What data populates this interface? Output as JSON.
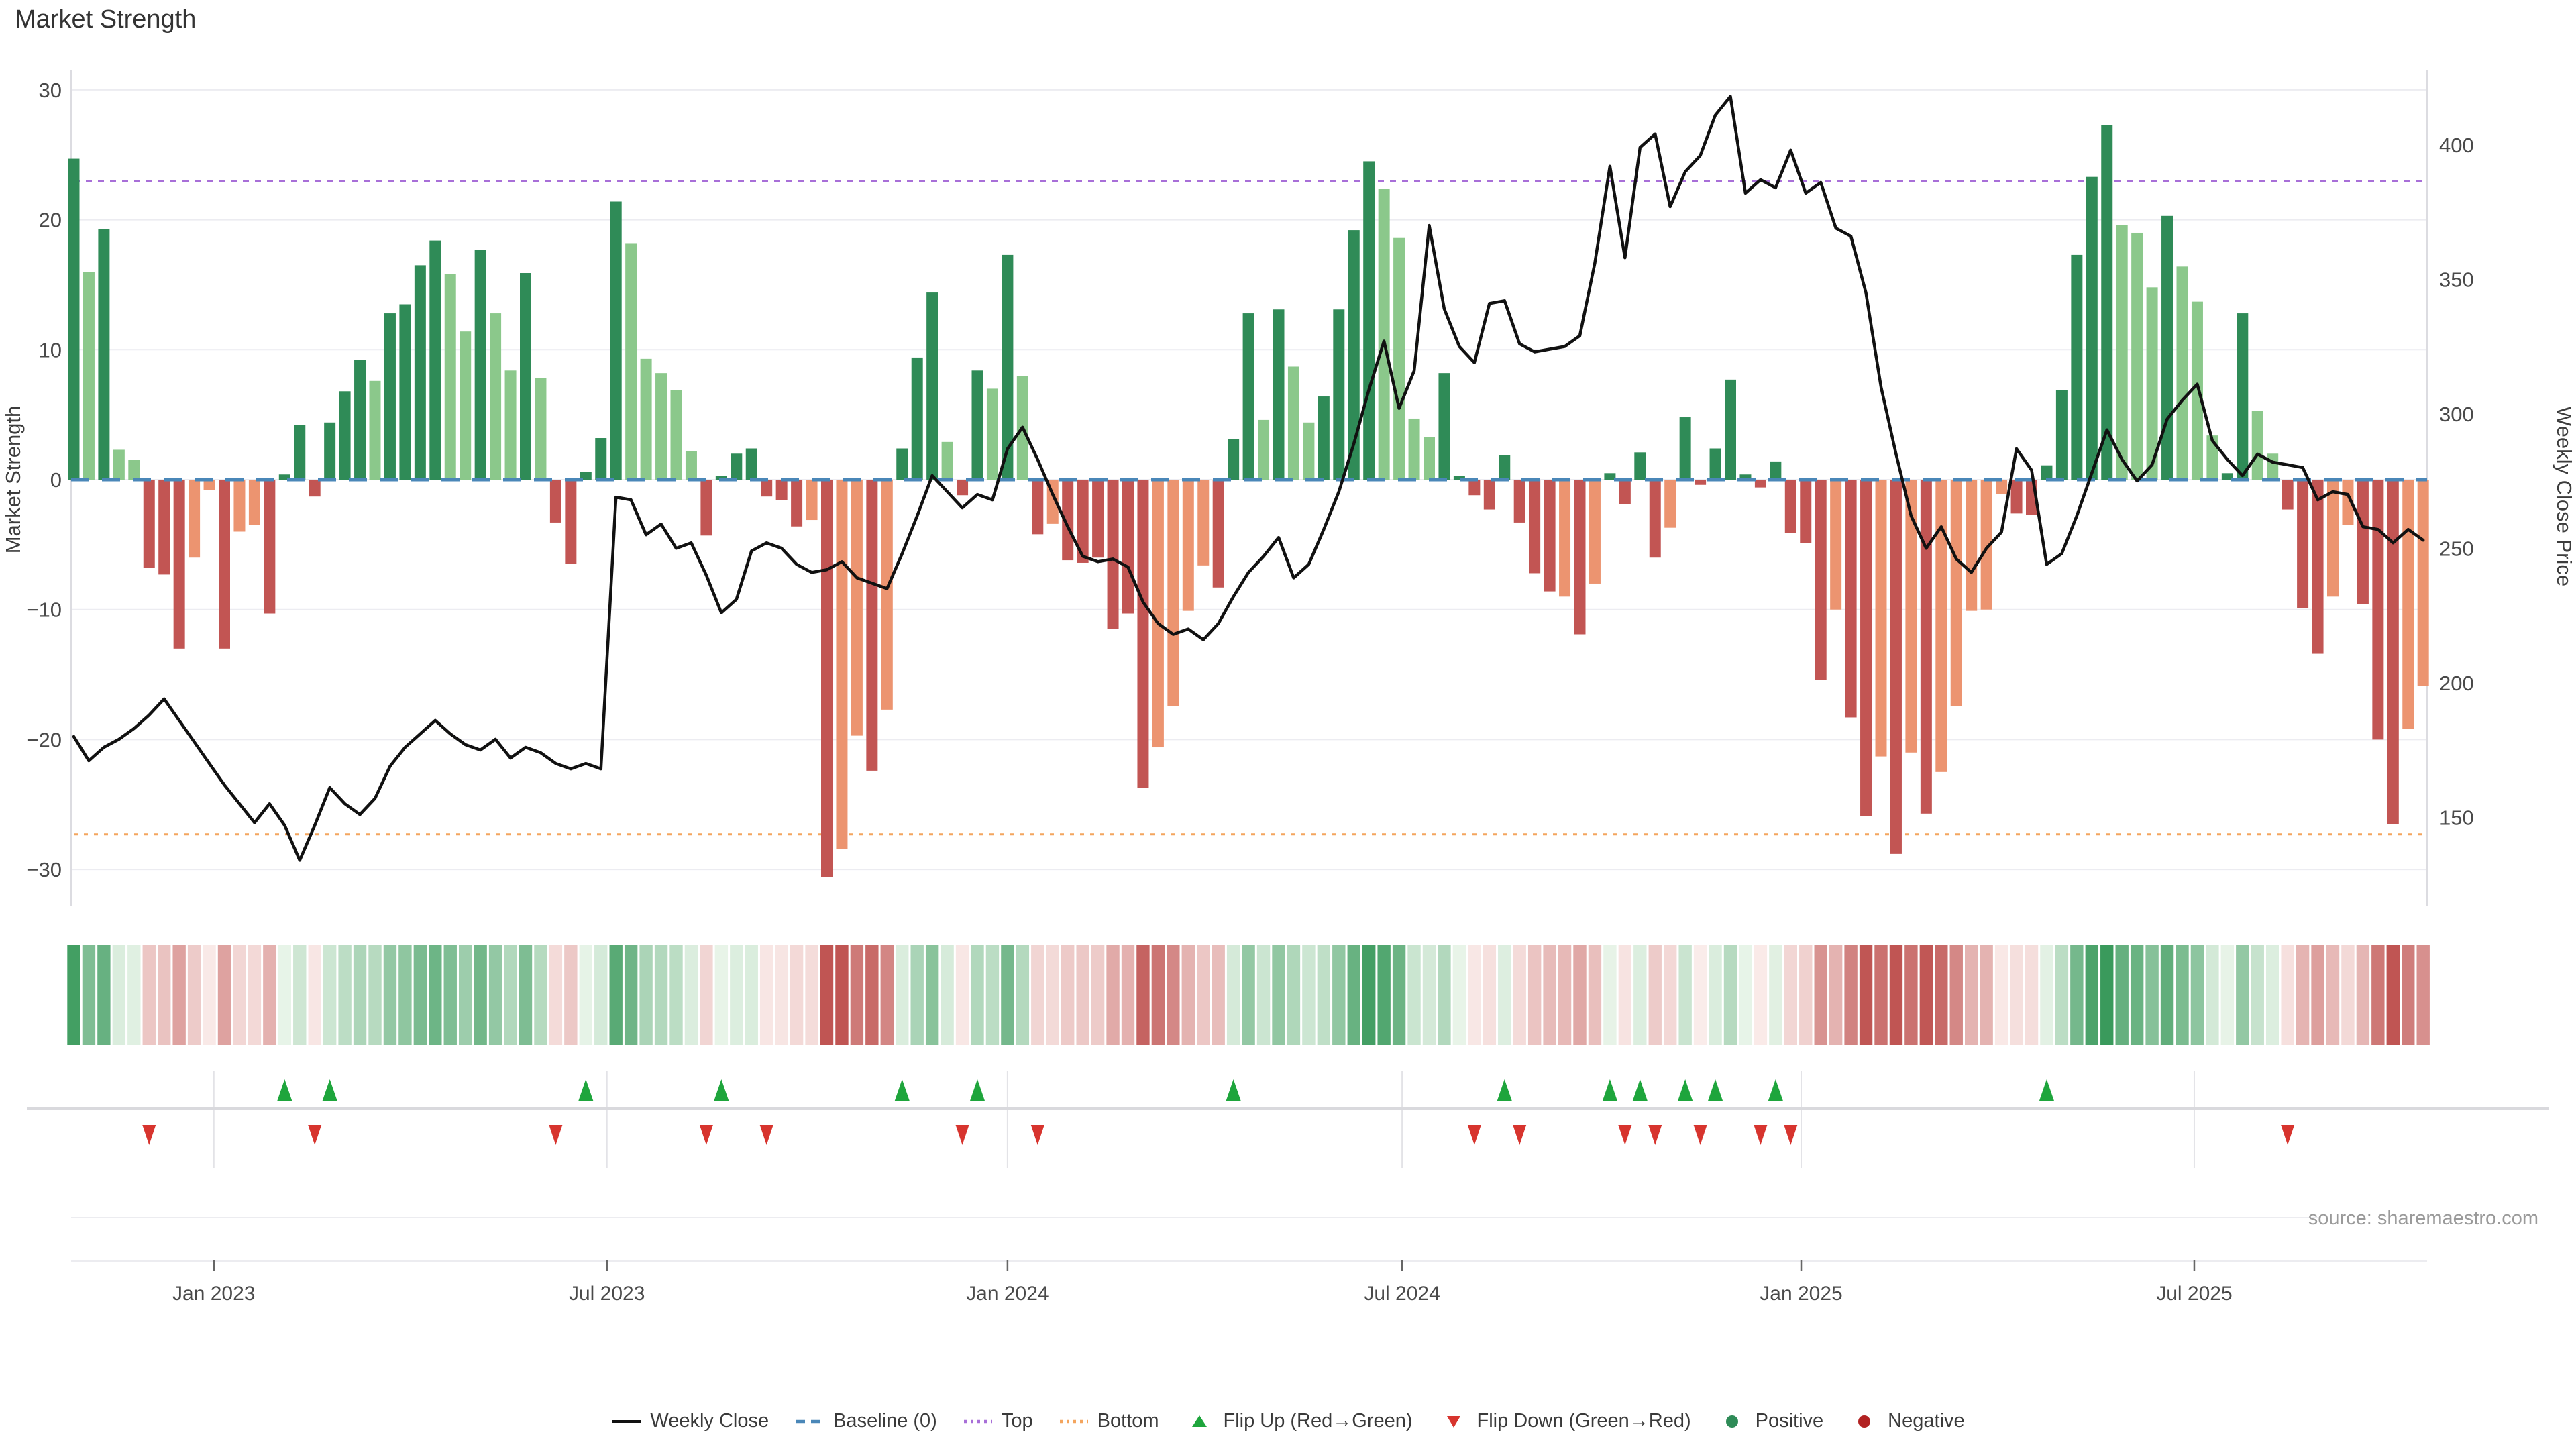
{
  "title": "Market Strength",
  "source": "source: sharemaestro.com",
  "axes": {
    "left": {
      "label": "Market Strength",
      "ticks": [
        30,
        20,
        10,
        0,
        -10,
        -20,
        -30
      ]
    },
    "right": {
      "label": "Weekly Close Price",
      "ticks": [
        400,
        350,
        300,
        250,
        200,
        150
      ]
    },
    "x": {
      "ticks": [
        {
          "label": "Jan 2023",
          "week": 10.3
        },
        {
          "label": "Jul 2023",
          "week": 36.4
        },
        {
          "label": "Jan 2024",
          "week": 63.0
        },
        {
          "label": "Jul 2024",
          "week": 89.2
        },
        {
          "label": "Jan 2025",
          "week": 115.7
        },
        {
          "label": "Jul 2025",
          "week": 141.8
        }
      ]
    }
  },
  "chart_data": {
    "type": "combo",
    "x_unit": "week",
    "n_weeks": 157,
    "series": [
      {
        "name": "Market Strength",
        "type": "bar",
        "axis": "left",
        "values": [
          24.7,
          16,
          19.3,
          2.3,
          1.5,
          -6.8,
          -7.3,
          -13,
          -6,
          -0.8,
          -13,
          -4,
          -3.5,
          -10.3,
          0.4,
          4.2,
          -1.3,
          4.4,
          6.8,
          9.2,
          7.6,
          12.8,
          13.5,
          16.5,
          18.4,
          15.8,
          11.4,
          17.7,
          12.8,
          8.4,
          15.9,
          7.8,
          -3.3,
          -6.5,
          0.6,
          3.2,
          21.4,
          18.2,
          9.3,
          8.2,
          6.9,
          2.2,
          -4.3,
          0.3,
          2.0,
          2.4,
          -1.3,
          -1.6,
          -3.6,
          -3.1,
          -30.6,
          -28.4,
          -19.7,
          -22.4,
          -17.7,
          2.4,
          9.4,
          14.4,
          2.9,
          -1.2,
          8.4,
          7.0,
          17.3,
          8.0,
          -4.2,
          -3.4,
          -6.2,
          -6.4,
          -6.0,
          -11.5,
          -10.3,
          -23.7,
          -20.6,
          -17.4,
          -10.1,
          -6.6,
          -8.3,
          3.1,
          12.8,
          4.6,
          13.1,
          8.7,
          4.4,
          6.4,
          13.1,
          19.2,
          24.5,
          22.4,
          18.6,
          4.7,
          3.3,
          8.2,
          0.3,
          -1.2,
          -2.3,
          1.9,
          -3.3,
          -7.2,
          -8.6,
          -9.0,
          -11.9,
          -8.0,
          0.5,
          -1.9,
          2.1,
          -6.0,
          -3.7,
          4.8,
          -0.4,
          2.4,
          7.7,
          0.4,
          -0.6,
          1.4,
          -4.1,
          -4.9,
          -15.4,
          -10.0,
          -18.3,
          -25.9,
          -21.3,
          -28.8,
          -21.0,
          -25.7,
          -22.5,
          -17.4,
          -10.1,
          -10.0,
          -1.1,
          -2.6,
          -2.7,
          1.1,
          6.9,
          17.3,
          23.3,
          27.3,
          19.6,
          19.0,
          14.8,
          20.3,
          16.4,
          13.7,
          3.4,
          0.5,
          12.8,
          5.3,
          2.0,
          -2.3,
          -9.9,
          -13.4,
          -9.0,
          -3.5,
          -9.6,
          -20.0,
          -26.5,
          -19.2,
          -15.9
        ],
        "shades": "dldllrrrooroorddrdddlddddlldlldlrrdddlllllrdddrrroroorodddlrdldlrorrrrrroooorddldllddddllllddrrdrrrorodrdrodrdddrdrrrorrororooooorrdddddllldlllddllrrroorrroo"
      },
      {
        "name": "Weekly Close",
        "type": "line",
        "axis": "right",
        "values": [
          180,
          171,
          176,
          179,
          183,
          188,
          194,
          186,
          178,
          170,
          162,
          155,
          148,
          155,
          147,
          134,
          147,
          161,
          155,
          151,
          157,
          169,
          176,
          181,
          186,
          181,
          177,
          175,
          179,
          172,
          176,
          174,
          170,
          168,
          170,
          168,
          269,
          268,
          255,
          259,
          250,
          252,
          240,
          226,
          231,
          249,
          252,
          250,
          244,
          241,
          242,
          245,
          239,
          237,
          235,
          248,
          262,
          277,
          271,
          265,
          270,
          268,
          287,
          295,
          283,
          270,
          258,
          247,
          245,
          246,
          243,
          230,
          222,
          218,
          220,
          216,
          222,
          232,
          241,
          247,
          254,
          239,
          244,
          257,
          271,
          289,
          309,
          327,
          302,
          316,
          370,
          339,
          325,
          319,
          341,
          342,
          326,
          323,
          324,
          325,
          329,
          356,
          392,
          358,
          399,
          404,
          377,
          390,
          396,
          411,
          418,
          382,
          387,
          384,
          398,
          382,
          386,
          369,
          366,
          345,
          310,
          285,
          262,
          250,
          258,
          246,
          241,
          250,
          256,
          287,
          279,
          244,
          248,
          262,
          278,
          294,
          283,
          275,
          281,
          298,
          305,
          311,
          290,
          283,
          277,
          285,
          282,
          281,
          280,
          268,
          271,
          270,
          258,
          257,
          252,
          257,
          253
        ]
      }
    ],
    "reference_lines": {
      "baseline": 0,
      "top": 23,
      "bottom": -27.3
    },
    "flip_up_weeks": [
      15,
      18,
      35,
      44,
      56,
      61,
      78,
      96,
      103,
      105,
      108,
      110,
      114,
      132
    ],
    "flip_down_weeks": [
      6,
      17,
      33,
      43,
      47,
      60,
      65,
      94,
      97,
      104,
      106,
      109,
      113,
      115,
      148
    ],
    "left_ylim": [
      -31.5,
      31.5
    ],
    "right_ticks": [
      400,
      350,
      300,
      250,
      200,
      150
    ],
    "grid": "horizontal"
  },
  "legend": [
    {
      "label": "Weekly Close",
      "swatch": "line",
      "color": "#111111"
    },
    {
      "label": "Baseline (0)",
      "swatch": "dashed-line",
      "color": "#4a87b8"
    },
    {
      "label": "Top",
      "swatch": "dotted-line",
      "color": "#a86fd8"
    },
    {
      "label": "Bottom",
      "swatch": "dotted-line",
      "color": "#f4a55e"
    },
    {
      "label": "Flip Up (Red→Green)",
      "swatch": "triangle-up",
      "color": "#1ea53c"
    },
    {
      "label": "Flip Down (Green→Red)",
      "swatch": "triangle-down",
      "color": "#d7342e"
    },
    {
      "label": "Positive",
      "swatch": "circle",
      "color": "#2e8b57"
    },
    {
      "label": "Negative",
      "swatch": "circle",
      "color": "#b22222"
    }
  ],
  "colors": {
    "bar_dark_green": "#2f8b57",
    "bar_light_green": "#8bc88b",
    "bar_red": "#c25553",
    "bar_salmon": "#ec9470",
    "price_line": "#111111",
    "baseline": "#4a87b8",
    "top_line": "#a86fd8",
    "bottom_line": "#f4a55e",
    "flip_up": "#1ea53c",
    "flip_down": "#d7342e",
    "grid": "#ececf1"
  }
}
